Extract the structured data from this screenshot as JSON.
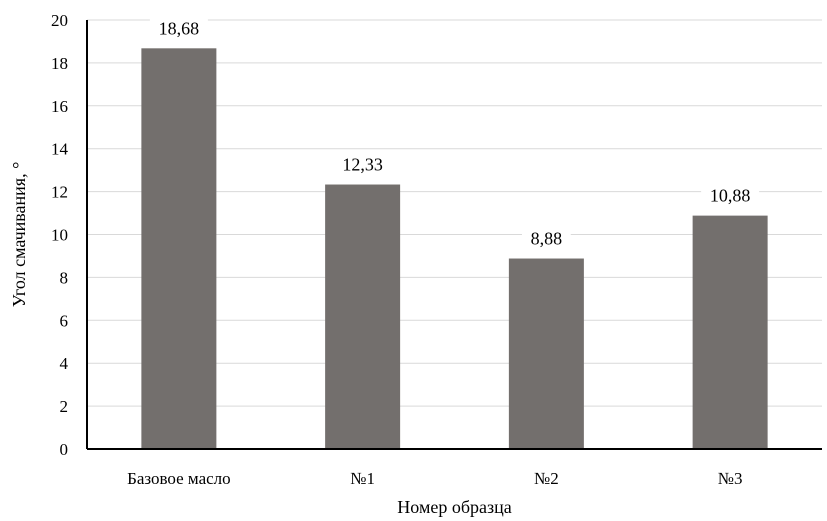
{
  "chart_data": {
    "type": "bar",
    "title": "",
    "xlabel": "Номер образца",
    "ylabel": "Угол смачивания, °",
    "categories": [
      "Базовое масло",
      "№1",
      "№2",
      "№3"
    ],
    "values": [
      18.68,
      12.33,
      8.88,
      10.88
    ],
    "data_labels": [
      "18,68",
      "12,33",
      "8,88",
      "10,88"
    ],
    "ylim": [
      0,
      20
    ],
    "yticks": [
      0,
      2,
      4,
      6,
      8,
      10,
      12,
      14,
      16,
      18,
      20
    ],
    "grid": true,
    "legend": "none",
    "colors": {
      "bar": "#736f6d",
      "grid": "#d9d9d9",
      "axis": "#000000"
    }
  }
}
